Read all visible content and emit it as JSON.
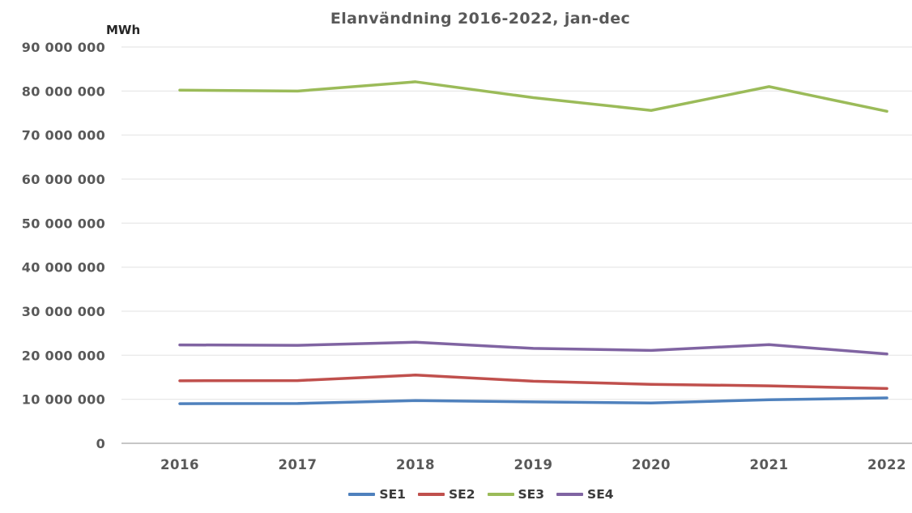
{
  "title": "Elanvändning 2016-2022, jan-dec",
  "unit_label": "MWh",
  "colors": {
    "title_text": "#595959",
    "tick_text": "#595959",
    "grid_line": "#e6e6e6",
    "zero_axis_line": "#b3b3b3",
    "se1": "#4F81BD",
    "se2": "#C0504D",
    "se3": "#9BBB59",
    "se4": "#8064A2"
  },
  "chart_data": {
    "type": "line",
    "title": "Elanvändning 2016-2022, jan-dec",
    "xlabel": "",
    "ylabel": "MWh",
    "categories": [
      "2016",
      "2017",
      "2018",
      "2019",
      "2020",
      "2021",
      "2022"
    ],
    "series": [
      {
        "name": "SE1",
        "color": "#4F81BD",
        "values": [
          9000000,
          9050000,
          9700000,
          9400000,
          9150000,
          9900000,
          10300000
        ]
      },
      {
        "name": "SE2",
        "color": "#C0504D",
        "values": [
          14200000,
          14250000,
          15500000,
          14100000,
          13400000,
          13050000,
          12450000
        ]
      },
      {
        "name": "SE3",
        "color": "#9BBB59",
        "values": [
          80200000,
          80000000,
          82100000,
          78500000,
          75600000,
          81000000,
          75400000
        ]
      },
      {
        "name": "SE4",
        "color": "#8064A2",
        "values": [
          22350000,
          22250000,
          22950000,
          21550000,
          21100000,
          22400000,
          20300000
        ]
      }
    ],
    "ylim": [
      0,
      90000000
    ],
    "y_tick_step": 10000000,
    "y_tick_labels": [
      "0",
      "10 000 000",
      "20 000 000",
      "30 000 000",
      "40 000 000",
      "50 000 000",
      "60 000 000",
      "70 000 000",
      "80 000 000",
      "90 000 000"
    ],
    "grid": true,
    "legend_position": "bottom"
  }
}
